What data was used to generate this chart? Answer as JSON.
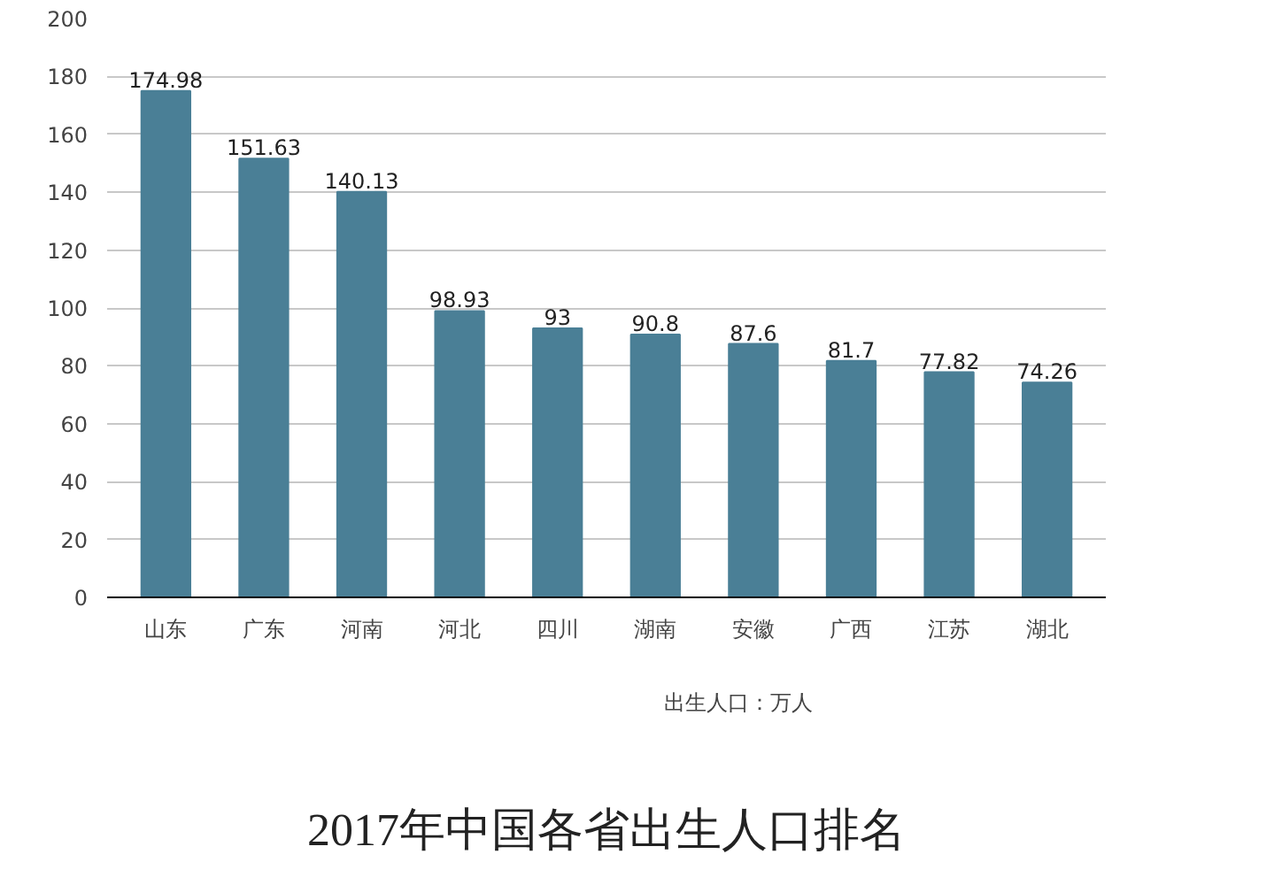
{
  "chart_data": {
    "type": "bar",
    "title": "2017年中国各省出生人口排名",
    "categories": [
      "山东",
      "广东",
      "河南",
      "河北",
      "四川",
      "湖南",
      "安徽",
      "广西",
      "江苏",
      "湖北"
    ],
    "series": [
      {
        "name": "出生人口：万人",
        "color": "#4a7f96",
        "values": [
          174.98,
          151.63,
          140.13,
          98.93,
          93,
          90.8,
          87.6,
          81.7,
          77.82,
          74.26
        ]
      }
    ],
    "ylim": [
      0,
      200
    ],
    "yticks": [
      0,
      20,
      40,
      60,
      80,
      100,
      120,
      140,
      160,
      180,
      200
    ],
    "grid": "y",
    "legend": "bottom",
    "data_labels": true
  }
}
